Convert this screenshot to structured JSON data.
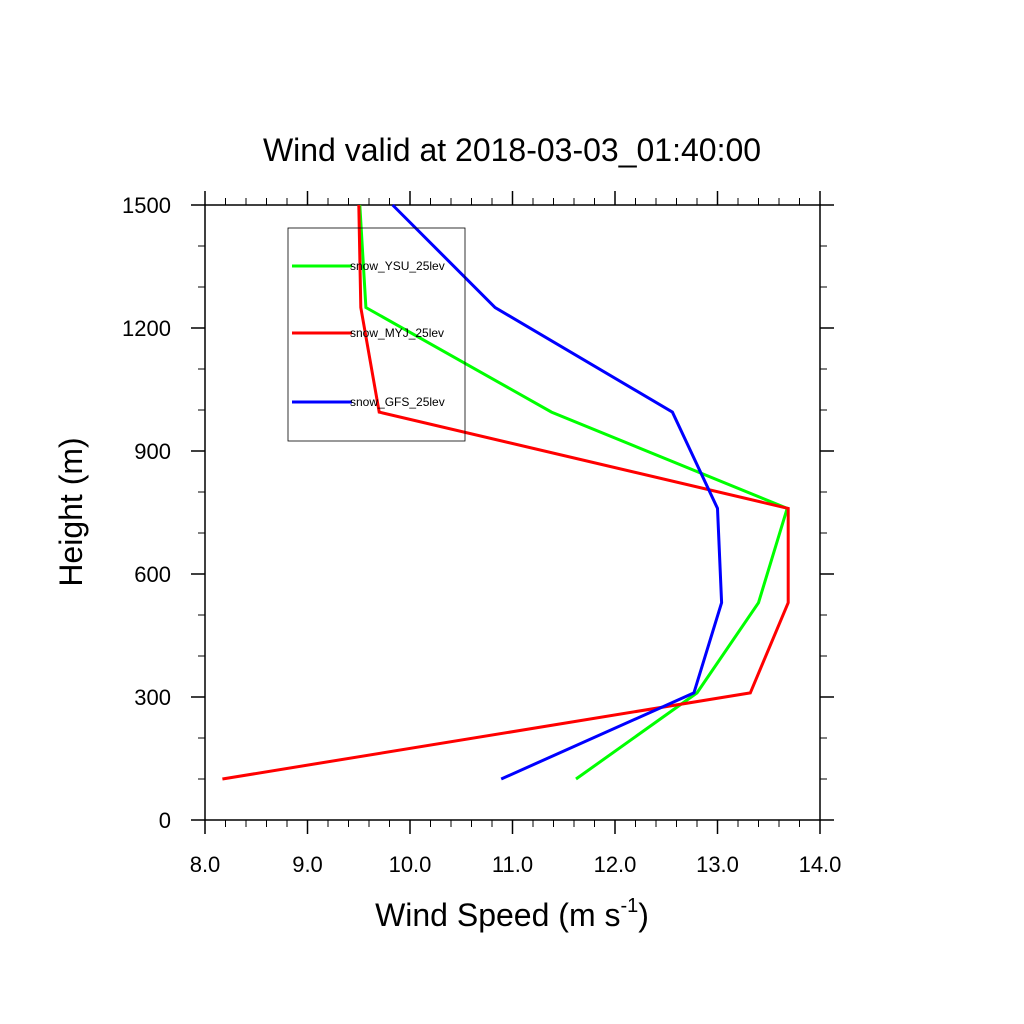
{
  "chart_data": {
    "type": "line",
    "title": "Wind valid at 2018-03-03_01:40:00",
    "xlabel": "Wind Speed (m s",
    "xlabel_superscript": "-1",
    "xlabel_suffix": ")",
    "ylabel": "Height (m)",
    "xlim": [
      8.0,
      14.0
    ],
    "ylim": [
      0,
      1500
    ],
    "x_ticks": [
      "8.0",
      "9.0",
      "10.0",
      "11.0",
      "12.0",
      "13.0",
      "14.0"
    ],
    "y_ticks": [
      "0",
      "300",
      "600",
      "900",
      "1200",
      "1500"
    ],
    "grid": false,
    "legend_position": "top-left",
    "series": [
      {
        "name": "snow_YSU_25lev",
        "color": "#00ff00",
        "x": [
          11.62,
          12.8,
          13.4,
          13.68,
          11.38,
          9.57,
          9.51
        ],
        "y": [
          100,
          310,
          530,
          760,
          995,
          1250,
          1500
        ]
      },
      {
        "name": "snow_MYJ_25lev",
        "color": "#ff0000",
        "x": [
          8.17,
          13.32,
          13.69,
          13.69,
          9.7,
          9.52,
          9.5
        ],
        "y": [
          100,
          310,
          530,
          760,
          995,
          1250,
          1500
        ]
      },
      {
        "name": "snow_GFS_25lev",
        "color": "#0000ff",
        "x": [
          10.89,
          12.77,
          13.04,
          13.0,
          12.56,
          10.83,
          9.83
        ],
        "y": [
          100,
          310,
          530,
          760,
          995,
          1250,
          1500
        ]
      }
    ]
  }
}
